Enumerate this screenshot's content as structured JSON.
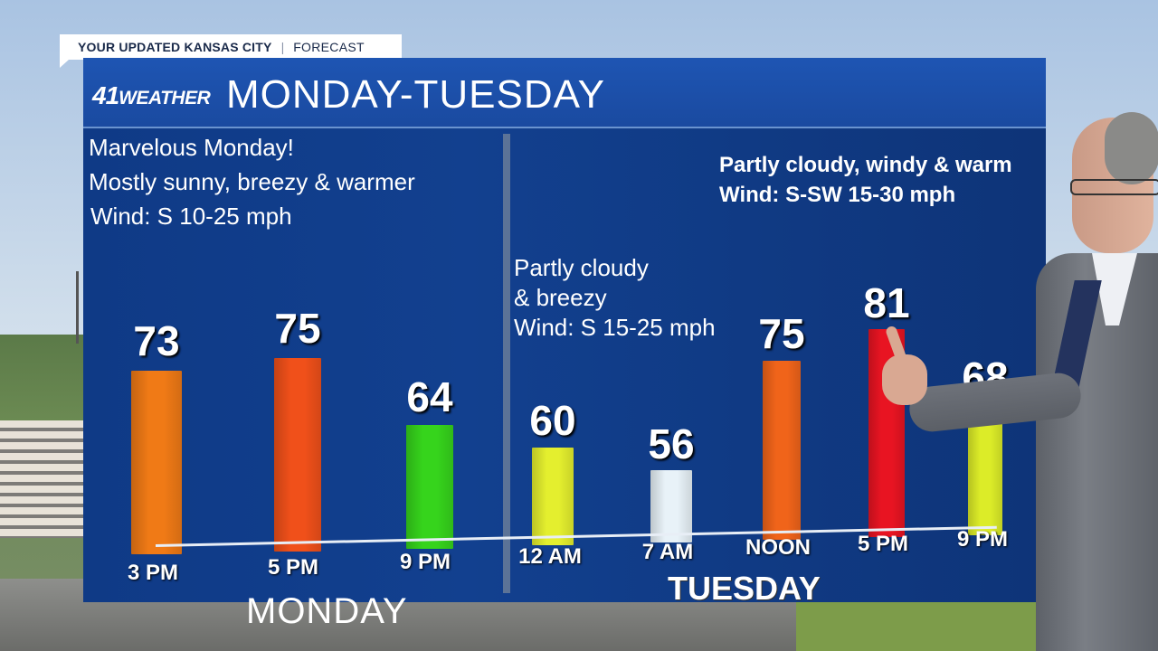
{
  "banner": {
    "main": "YOUR UPDATED KANSAS CITY",
    "separator": "|",
    "sub": "FORECAST"
  },
  "header": {
    "logo_number": "41",
    "logo_word": "WEATHER",
    "title": "MONDAY-TUESDAY"
  },
  "monday": {
    "line1": "Marvelous Monday!",
    "line2": "Mostly sunny, breezy & warmer",
    "line3": "Wind: S 10-25 mph",
    "day_label": "MONDAY"
  },
  "monday_night": {
    "line1": "Partly cloudy",
    "line2": "& breezy",
    "line3": "Wind: S 15-25 mph"
  },
  "tuesday": {
    "line1": "Partly cloudy, windy & warm",
    "line2": "Wind: S-SW 15-30 mph",
    "day_label": "TUESDAY"
  },
  "temps": [
    {
      "time": "3 PM",
      "value": "73",
      "color": "#f07a16"
    },
    {
      "time": "5 PM",
      "value": "75",
      "color": "#f0501a"
    },
    {
      "time": "9 PM",
      "value": "64",
      "color": "#36d41c"
    },
    {
      "time": "12 AM",
      "value": "60",
      "color": "#e4ef2e"
    },
    {
      "time": "7 AM",
      "value": "56",
      "color": "#e8f2f8"
    },
    {
      "time": "NOON",
      "value": "75",
      "color": "#f0641a"
    },
    {
      "time": "5 PM",
      "value": "81",
      "color": "#e81422"
    },
    {
      "time": "9 PM",
      "value": "68",
      "color": "#dcec28"
    }
  ]
}
